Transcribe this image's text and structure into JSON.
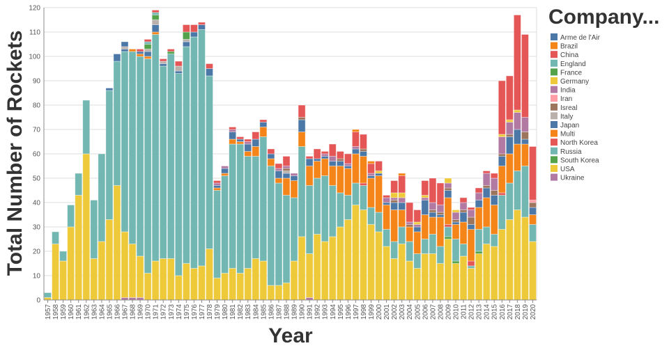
{
  "chart_data": {
    "type": "bar",
    "stacked": true,
    "xlabel": "Year",
    "ylabel": "Total Number of Rockets",
    "ylim": [
      0,
      120
    ],
    "yticks": [
      0,
      10,
      20,
      30,
      40,
      50,
      60,
      70,
      80,
      90,
      100,
      110,
      120
    ],
    "grid": true,
    "legend": {
      "title": "Company...",
      "placement": "right",
      "entries": [
        {
          "name": "Arme de l'Air",
          "color": "#4c78a8"
        },
        {
          "name": "Brazil",
          "color": "#f58518"
        },
        {
          "name": "China",
          "color": "#e45756"
        },
        {
          "name": "England",
          "color": "#72b7b2"
        },
        {
          "name": "France",
          "color": "#54a24b"
        },
        {
          "name": "Germany",
          "color": "#eeca3b"
        },
        {
          "name": "India",
          "color": "#b279a2"
        },
        {
          "name": "Iran",
          "color": "#ff9da6"
        },
        {
          "name": "Isreal",
          "color": "#9d755d"
        },
        {
          "name": "Italy",
          "color": "#bab0ac"
        },
        {
          "name": "Japan",
          "color": "#4c78a8"
        },
        {
          "name": "Multi",
          "color": "#f58518"
        },
        {
          "name": "North Korea",
          "color": "#e45756"
        },
        {
          "name": "Russia",
          "color": "#72b7b2"
        },
        {
          "name": "South Korea",
          "color": "#54a24b"
        },
        {
          "name": "USA",
          "color": "#eeca3b"
        },
        {
          "name": "Ukraine",
          "color": "#b279a2"
        }
      ]
    },
    "records": [
      {
        "year": "1957",
        "USA": 1,
        "Russia": 2
      },
      {
        "year": "1958",
        "USA": 23,
        "Russia": 5
      },
      {
        "year": "1959",
        "USA": 16,
        "Russia": 4
      },
      {
        "year": "1960",
        "USA": 30,
        "Russia": 9
      },
      {
        "year": "1961",
        "USA": 43,
        "Russia": 9
      },
      {
        "year": "1962",
        "USA": 60,
        "Russia": 22
      },
      {
        "year": "1963",
        "USA": 17,
        "Russia": 24
      },
      {
        "year": "1964",
        "USA": 24,
        "Russia": 36
      },
      {
        "year": "1965",
        "USA": 33,
        "Russia": 53,
        "Arme de l'Air": 1
      },
      {
        "year": "1966",
        "USA": 47,
        "Russia": 51,
        "Arme de l'Air": 3
      },
      {
        "year": "1967",
        "Ukraine": 1,
        "USA": 27,
        "Russia": 74,
        "Japan": 1,
        "Italy": 1,
        "Arme de l'Air": 2
      },
      {
        "year": "1968",
        "Ukraine": 1,
        "USA": 22,
        "Russia": 79,
        "Multi": 1
      },
      {
        "year": "1969",
        "Ukraine": 1,
        "USA": 17,
        "Russia": 82,
        "Multi": 1,
        "Japan": 1,
        "China": 1
      },
      {
        "year": "1970",
        "USA": 11,
        "Russia": 88,
        "Multi": 1,
        "Japan": 2,
        "Italy": 1,
        "France": 2,
        "England": 1,
        "China": 1
      },
      {
        "year": "1971",
        "USA": 16,
        "Russia": 93,
        "Multi": 1,
        "Japan": 3,
        "Italy": 2,
        "France": 2,
        "England": 1,
        "China": 1
      },
      {
        "year": "1972",
        "USA": 17,
        "Russia": 79,
        "Japan": 1,
        "Italy": 1,
        "China": 1
      },
      {
        "year": "1973",
        "USA": 17,
        "Russia": 84,
        "France": 1,
        "China": 1
      },
      {
        "year": "1974",
        "USA": 10,
        "Russia": 83,
        "Japan": 1,
        "Italy": 2,
        "China": 2
      },
      {
        "year": "1975",
        "USA": 15,
        "Russia": 89,
        "Japan": 2,
        "Italy": 1,
        "France": 3,
        "China": 3
      },
      {
        "year": "1976",
        "USA": 13,
        "Russia": 95,
        "Japan": 2,
        "China": 3
      },
      {
        "year": "1977",
        "USA": 14,
        "Russia": 97,
        "Japan": 2,
        "China": 1
      },
      {
        "year": "1978",
        "USA": 21,
        "Russia": 71,
        "Japan": 3,
        "China": 2
      },
      {
        "year": "1979",
        "USA": 9,
        "Russia": 36,
        "Multi": 1,
        "Japan": 1,
        "India": 1,
        "China": 1
      },
      {
        "year": "1980",
        "USA": 11,
        "Russia": 40,
        "Multi": 1,
        "Japan": 2,
        "India": 1
      },
      {
        "year": "1981",
        "USA": 13,
        "Russia": 51,
        "Multi": 2,
        "Japan": 3,
        "India": 1,
        "China": 1
      },
      {
        "year": "1982",
        "USA": 11,
        "Russia": 53,
        "Multi": 1,
        "Japan": 1,
        "China": 1
      },
      {
        "year": "1983",
        "USA": 13,
        "Russia": 46,
        "Multi": 2,
        "Japan": 3,
        "India": 1,
        "China": 1
      },
      {
        "year": "1984",
        "USA": 17,
        "Russia": 42,
        "Multi": 4,
        "Japan": 3,
        "China": 3
      },
      {
        "year": "1985",
        "USA": 16,
        "Russia": 51,
        "Multi": 4,
        "Japan": 2,
        "China": 1
      },
      {
        "year": "1986",
        "USA": 6,
        "Russia": 49,
        "Multi": 3,
        "Japan": 2,
        "China": 2
      },
      {
        "year": "1987",
        "USA": 6,
        "Russia": 42,
        "Multi": 2,
        "Japan": 3,
        "India": 1,
        "China": 2
      },
      {
        "year": "1988",
        "USA": 7,
        "Russia": 36,
        "Multi": 7,
        "Japan": 2,
        "Italy": 1,
        "Isreal": 1,
        "India": 1,
        "China": 4
      },
      {
        "year": "1989",
        "USA": 16,
        "Russia": 26,
        "Multi": 7,
        "Japan": 2,
        "India": 1
      },
      {
        "year": "1990",
        "USA": 26,
        "Russia": 37,
        "Multi": 6,
        "Japan": 5,
        "Isreal": 1,
        "China": 5
      },
      {
        "year": "1991",
        "Ukraine": 1,
        "USA": 18,
        "Russia": 28,
        "Multi": 8,
        "Japan": 3,
        "China": 1
      },
      {
        "year": "1992",
        "USA": 27,
        "Russia": 23,
        "Multi": 7,
        "Japan": 1,
        "China": 4
      },
      {
        "year": "1993",
        "USA": 24,
        "Russia": 27,
        "Multi": 7,
        "Japan": 1,
        "India": 1,
        "China": 1
      },
      {
        "year": "1994",
        "USA": 26,
        "Russia": 21,
        "Multi": 8,
        "Japan": 2,
        "India": 2,
        "China": 5
      },
      {
        "year": "1995",
        "USA": 30,
        "Russia": 14,
        "Multi": 11,
        "Japan": 2,
        "Isreal": 1,
        "China": 3
      },
      {
        "year": "1996",
        "USA": 33,
        "Russia": 10,
        "Multi": 11,
        "Japan": 1,
        "India": 1,
        "China": 4
      },
      {
        "year": "1997",
        "USA": 39,
        "Russia": 9,
        "Multi": 12,
        "Japan": 2,
        "India": 1,
        "China": 6,
        "Brazil": 1
      },
      {
        "year": "1998",
        "USA": 37,
        "Russia": 10,
        "North Korea": 1,
        "Multi": 11,
        "Japan": 2,
        "Isreal": 1,
        "China": 6
      },
      {
        "year": "1999",
        "USA": 31,
        "Russia": 7,
        "Multi": 12,
        "Japan": 1,
        "India": 1,
        "China": 4,
        "Brazil": 1
      },
      {
        "year": "2000",
        "USA": 28,
        "Russia": 8,
        "Multi": 15,
        "Japan": 1,
        "Germany": 1,
        "China": 4
      },
      {
        "year": "2001",
        "USA": 22,
        "Russia": 7,
        "Multi": 10,
        "Japan": 1,
        "India": 2,
        "China": 1
      },
      {
        "year": "2002",
        "USA": 17,
        "Russia": 7,
        "Multi": 13,
        "Japan": 3,
        "Isreal": 1,
        "India": 1,
        "Germany": 2,
        "China": 5
      },
      {
        "year": "2003",
        "USA": 23,
        "Russia": 7,
        "Multi": 7,
        "Japan": 3,
        "India": 2,
        "Germany": 2,
        "China": 7,
        "Brazil": 1
      },
      {
        "year": "2004",
        "USA": 16,
        "Russia": 8,
        "Multi": 6,
        "Isreal": 1,
        "India": 1,
        "China": 8
      },
      {
        "year": "2005",
        "USA": 13,
        "Russia": 6,
        "Multi": 9,
        "Japan": 2,
        "India": 1,
        "Germany": 1,
        "China": 5
      },
      {
        "year": "2006",
        "USA": 19,
        "Russia": 6,
        "Multi": 10,
        "Japan": 6,
        "India": 1,
        "Germany": 1,
        "China": 6
      },
      {
        "year": "2007",
        "USA": 19,
        "Russia": 8,
        "Multi": 7,
        "Japan": 2,
        "Isreal": 1,
        "India": 3,
        "China": 10
      },
      {
        "year": "2008",
        "USA": 15,
        "Russia": 7,
        "Multi": 12,
        "Japan": 1,
        "Isreal": 1,
        "India": 3,
        "China": 9
      },
      {
        "year": "2009",
        "USA": 25,
        "South Korea": 1,
        "Russia": 4,
        "North Korea": 1,
        "Multi": 11,
        "Japan": 3,
        "Isreal": 1,
        "India": 2,
        "Germany": 2
      },
      {
        "year": "2010",
        "USA": 15,
        "South Korea": 1,
        "Russia": 9,
        "Multi": 6,
        "Japan": 1,
        "Isreal": 1,
        "India": 3,
        "Germany": 1
      },
      {
        "year": "2011",
        "USA": 18,
        "Russia": 5,
        "Multi": 9,
        "Japan": 4,
        "Isreal": 1,
        "India": 3,
        "China": 2
      },
      {
        "year": "2012",
        "USA": 13,
        "Russia": 1,
        "North Korea": 2,
        "Multi": 13,
        "Japan": 2,
        "Isreal": 3,
        "India": 3,
        "China": 1
      },
      {
        "year": "2013",
        "USA": 19,
        "South Korea": 1,
        "Russia": 9,
        "Multi": 9,
        "Japan": 3,
        "India": 3,
        "China": 2
      },
      {
        "year": "2014",
        "USA": 23,
        "Russia": 7,
        "Multi": 12,
        "Japan": 4,
        "Isreal": 1,
        "India": 5,
        "China": 1
      },
      {
        "year": "2015",
        "USA": 22,
        "Russia": 5,
        "Multi": 12,
        "Japan": 4,
        "Isreal": 2,
        "India": 5,
        "China": 2
      },
      {
        "year": "2016",
        "USA": 29,
        "Russia": 14,
        "North Korea": 1,
        "Multi": 11,
        "Japan": 4,
        "Isreal": 1,
        "India": 7,
        "Germany": 1,
        "China": 22
      },
      {
        "year": "2017",
        "USA": 33,
        "Russia": 15,
        "Multi": 12,
        "Japan": 7,
        "Isreal": 1,
        "India": 5,
        "Germany": 1,
        "China": 18
      },
      {
        "year": "2018",
        "USA": 37,
        "Russia": 16,
        "Multi": 11,
        "Japan": 6,
        "India": 7,
        "Germany": 1,
        "China": 39
      },
      {
        "year": "2019",
        "USA": 34,
        "Russia": 21,
        "Multi": 9,
        "Japan": 2,
        "Isreal": 3,
        "India": 6,
        "China": 34
      },
      {
        "year": "2020",
        "USA": 24,
        "Russia": 7,
        "Multi": 4,
        "Japan": 3,
        "Isreal": 2,
        "Iran": 1,
        "China": 22
      }
    ]
  }
}
